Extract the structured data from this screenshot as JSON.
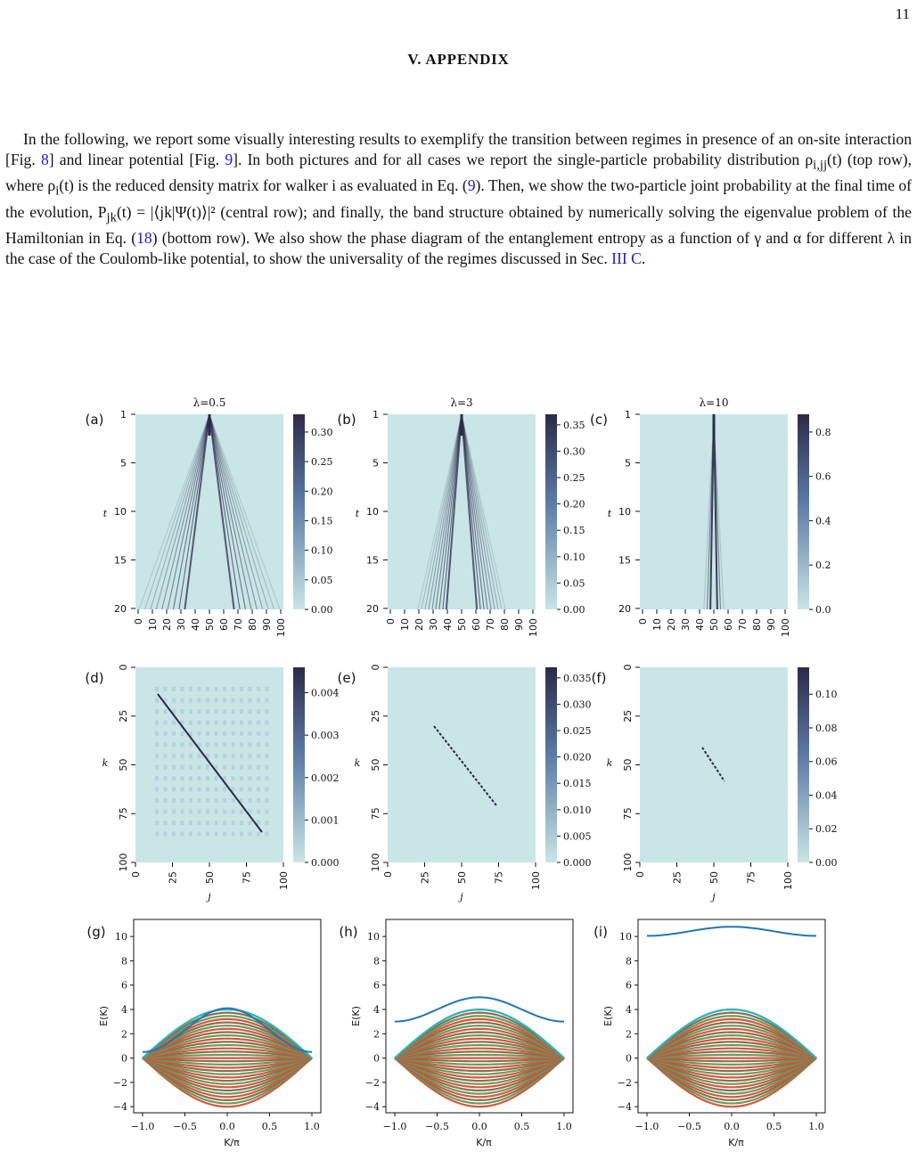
{
  "page_number": "11",
  "section_title": "V.   APPENDIX",
  "paragraph": {
    "s1": "In the following, we report some visually interesting results to exemplify the transition between regimes in presence of an on-site interaction [Fig. ",
    "ref_fig8": "8",
    "s2": "] and linear potential [Fig. ",
    "ref_fig9": "9",
    "s3": "].  In both pictures and for all cases we report the single-particle probability distribution ρ",
    "sub1": "i,jj",
    "s4": "(t) (top row), where ρ",
    "sub2": "i",
    "s5": "(t) is the reduced density matrix for walker i as evaluated in Eq. (",
    "ref_eq9": "9",
    "s6": "). Then, we show the two-particle joint probability at the final time of the evolution, P",
    "sub3": "jk",
    "s7": "(t) = |⟨jk|Ψ(t)⟩|² (central row); and finally, the band structure obtained by numerically solving the eigenvalue problem of the Hamiltonian in Eq. (",
    "ref_eq18": "18",
    "s8": ") (bottom row).  We also show the phase diagram of the entanglement entropy as a function of γ and α for different λ in the case of the Coulomb-like potential, to show the universality of the regimes discussed in Sec. ",
    "ref_sec": "III C",
    "s9": "."
  },
  "figure": {
    "colors": {
      "background": "#c9e5e6",
      "dark": "#2c2a4a",
      "line_blue": "#1f77b4",
      "line_teal": "#17becf",
      "band_brown": "#8c6d4f",
      "band_red": "#d9553b",
      "band_green": "#6a9a5a"
    },
    "top_row": {
      "ylabel": "t",
      "xlabel": "j",
      "yticks": [
        "1",
        "5",
        "10",
        "15",
        "20"
      ],
      "xticks": [
        "0",
        "10",
        "20",
        "30",
        "40",
        "50",
        "60",
        "70",
        "80",
        "90",
        "100"
      ],
      "panels": [
        {
          "letter": "(a)",
          "title": "λ=0.5",
          "cbar_ticks": [
            "0.30",
            "0.25",
            "0.20",
            "0.15",
            "0.10",
            "0.05",
            "0.00"
          ],
          "cbar_max": 0.33
        },
        {
          "letter": "(b)",
          "title": "λ=3",
          "cbar_ticks": [
            "0.35",
            "0.30",
            "0.25",
            "0.20",
            "0.15",
            "0.10",
            "0.05",
            "0.00"
          ],
          "cbar_max": 0.37
        },
        {
          "letter": "(c)",
          "title": "λ=10",
          "cbar_ticks": [
            "0.8",
            "0.6",
            "0.4",
            "0.2",
            "0.0"
          ],
          "cbar_max": 0.88
        }
      ]
    },
    "middle_row": {
      "ylabel": "k",
      "xlabel": "j",
      "yticks": [
        "0",
        "25",
        "50",
        "75",
        "100"
      ],
      "xticks": [
        "0",
        "25",
        "50",
        "75",
        "100"
      ],
      "panels": [
        {
          "letter": "(d)",
          "cbar_ticks": [
            "0.004",
            "0.003",
            "0.002",
            "0.001",
            "0.000"
          ],
          "cbar_max": 0.0046
        },
        {
          "letter": "(e)",
          "cbar_ticks": [
            "0.035",
            "0.030",
            "0.025",
            "0.020",
            "0.015",
            "0.010",
            "0.005",
            "0.000"
          ],
          "cbar_max": 0.037
        },
        {
          "letter": "(f)",
          "cbar_ticks": [
            "0.10",
            "0.08",
            "0.06",
            "0.04",
            "0.02",
            "0.00"
          ],
          "cbar_max": 0.116
        }
      ]
    },
    "bottom_row": {
      "ylabel": "E(K)",
      "xlabel": "K/π",
      "yticks": [
        "10",
        "8",
        "6",
        "4",
        "2",
        "0",
        "−2",
        "−4"
      ],
      "xticks": [
        "−1.0",
        "−0.5",
        "0.0",
        "0.5",
        "1.0"
      ],
      "panels": [
        {
          "letter": "(g)",
          "bound_state": [
            0.5,
            4.1,
            0.5
          ]
        },
        {
          "letter": "(h)",
          "bound_state": [
            3.0,
            5.0,
            3.0
          ]
        },
        {
          "letter": "(i)",
          "bound_state": [
            10.05,
            10.8,
            10.05
          ]
        }
      ]
    }
  }
}
